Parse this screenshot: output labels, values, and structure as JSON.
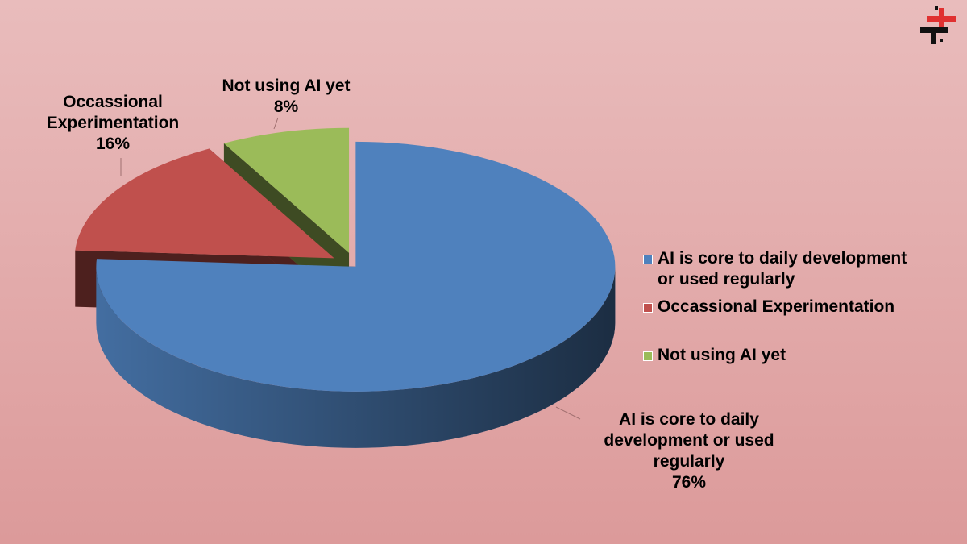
{
  "chart_data": {
    "type": "pie",
    "categories": [
      "AI is core to daily development or used regularly",
      "Occassional Experimentation",
      "Not using AI yet"
    ],
    "values": [
      76,
      16,
      8
    ],
    "value_labels": [
      "76%",
      "16%",
      "8%"
    ],
    "colors": [
      "#4f81bd",
      "#c0504d",
      "#9bbb59"
    ],
    "legend": "right"
  }
}
